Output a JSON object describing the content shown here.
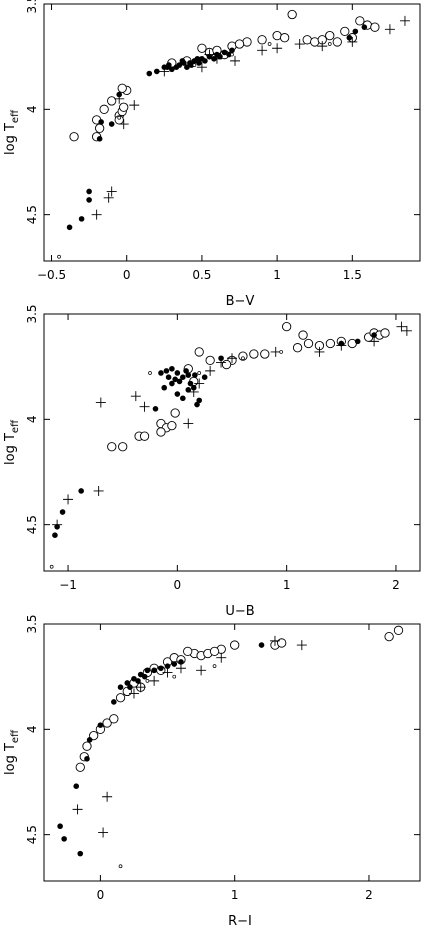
{
  "chart_data": [
    {
      "type": "scatter",
      "xlabel": "B−V",
      "ylabel": "log T",
      "ylabel_subscript": "eff",
      "xlim": [
        -0.55,
        1.95
      ],
      "ylim": [
        3.5,
        4.72
      ],
      "y_inverted": true,
      "x_ticks": [
        -0.5,
        0,
        0.5,
        1,
        1.5
      ],
      "x_tick_labels": [
        "−0.5",
        "0",
        "0.5",
        "1",
        "1.5"
      ],
      "y_ticks": [
        3.5,
        4,
        4.5
      ],
      "y_tick_labels": [
        "3.5",
        "4",
        "4.5"
      ],
      "grid": false,
      "series": [
        {
          "marker": "open-circle",
          "points": [
            [
              -0.35,
              4.13
            ],
            [
              -0.2,
              4.13
            ],
            [
              -0.2,
              4.05
            ],
            [
              -0.18,
              4.09
            ],
            [
              -0.15,
              4.0
            ],
            [
              -0.1,
              3.96
            ],
            [
              -0.05,
              4.03
            ],
            [
              -0.05,
              4.05
            ],
            [
              -0.03,
              4.01
            ],
            [
              -0.02,
              3.99
            ],
            [
              0.0,
              3.91
            ],
            [
              -0.03,
              3.9
            ],
            [
              0.3,
              3.78
            ],
            [
              0.4,
              3.77
            ],
            [
              0.5,
              3.71
            ],
            [
              0.55,
              3.73
            ],
            [
              0.6,
              3.72
            ],
            [
              0.7,
              3.7
            ],
            [
              0.8,
              3.68
            ],
            [
              0.9,
              3.67
            ],
            [
              1.0,
              3.65
            ],
            [
              1.05,
              3.66
            ],
            [
              1.2,
              3.67
            ],
            [
              1.25,
              3.68
            ],
            [
              1.3,
              3.67
            ],
            [
              1.4,
              3.68
            ],
            [
              1.5,
              3.66
            ],
            [
              1.55,
              3.58
            ],
            [
              1.6,
              3.6
            ],
            [
              1.65,
              3.61
            ],
            [
              1.1,
              3.55
            ],
            [
              1.45,
              3.63
            ],
            [
              1.35,
              3.65
            ],
            [
              0.75,
              3.69
            ],
            [
              0.65,
              3.74
            ]
          ]
        },
        {
          "marker": "filled-circle",
          "points": [
            [
              -0.38,
              4.56
            ],
            [
              -0.3,
              4.52
            ],
            [
              -0.25,
              4.43
            ],
            [
              -0.25,
              4.39
            ],
            [
              -0.18,
              4.14
            ],
            [
              -0.17,
              4.06
            ],
            [
              -0.1,
              4.07
            ],
            [
              -0.05,
              3.93
            ],
            [
              0.15,
              3.83
            ],
            [
              0.2,
              3.82
            ],
            [
              0.25,
              3.8
            ],
            [
              0.3,
              3.81
            ],
            [
              0.35,
              3.79
            ],
            [
              0.38,
              3.78
            ],
            [
              0.4,
              3.8
            ],
            [
              0.42,
              3.78
            ],
            [
              0.45,
              3.77
            ],
            [
              0.48,
              3.78
            ],
            [
              0.5,
              3.76
            ],
            [
              0.52,
              3.77
            ],
            [
              0.55,
              3.75
            ],
            [
              0.58,
              3.76
            ],
            [
              0.6,
              3.74
            ],
            [
              0.62,
              3.75
            ],
            [
              0.65,
              3.73
            ],
            [
              0.68,
              3.74
            ],
            [
              0.28,
              3.79
            ],
            [
              0.33,
              3.8
            ],
            [
              0.43,
              3.79
            ],
            [
              0.47,
              3.76
            ],
            [
              0.7,
              3.72
            ],
            [
              1.48,
              3.66
            ],
            [
              1.52,
              3.63
            ],
            [
              1.58,
              3.61
            ],
            [
              0.27,
              3.8
            ],
            [
              0.37,
              3.77
            ]
          ]
        },
        {
          "marker": "plus",
          "points": [
            [
              -0.2,
              4.5
            ],
            [
              -0.12,
              4.42
            ],
            [
              -0.1,
              4.39
            ],
            [
              -0.05,
              3.95
            ],
            [
              -0.02,
              4.07
            ],
            [
              0.05,
              3.98
            ],
            [
              0.25,
              3.82
            ],
            [
              0.5,
              3.8
            ],
            [
              0.72,
              3.77
            ],
            [
              0.9,
              3.72
            ],
            [
              1.0,
              3.71
            ],
            [
              1.3,
              3.7
            ],
            [
              1.5,
              3.68
            ],
            [
              1.75,
              3.62
            ],
            [
              1.85,
              3.58
            ],
            [
              0.6,
              3.76
            ],
            [
              1.15,
              3.69
            ],
            [
              0.55,
              3.74
            ]
          ]
        },
        {
          "marker": "small-circle",
          "points": [
            [
              -0.45,
              4.7
            ],
            [
              -0.05,
              4.04
            ],
            [
              0.45,
              3.79
            ],
            [
              0.7,
              3.74
            ],
            [
              0.95,
              3.69
            ],
            [
              1.35,
              3.69
            ]
          ]
        }
      ]
    },
    {
      "type": "scatter",
      "xlabel": "U−B",
      "ylabel": "log T",
      "ylabel_subscript": "eff",
      "xlim": [
        -1.22,
        2.22
      ],
      "ylim": [
        3.5,
        4.72
      ],
      "y_inverted": true,
      "x_ticks": [
        -1,
        0,
        1,
        2
      ],
      "x_tick_labels": [
        "−1",
        "0",
        "1",
        "2"
      ],
      "y_ticks": [
        3.5,
        4,
        4.5
      ],
      "y_tick_labels": [
        "3.5",
        "4",
        "4.5"
      ],
      "grid": false,
      "series": [
        {
          "marker": "open-circle",
          "points": [
            [
              -0.6,
              4.13
            ],
            [
              -0.5,
              4.13
            ],
            [
              -0.35,
              4.08
            ],
            [
              -0.3,
              4.08
            ],
            [
              -0.15,
              4.02
            ],
            [
              -0.1,
              4.04
            ],
            [
              -0.05,
              4.03
            ],
            [
              -0.15,
              4.06
            ],
            [
              -0.02,
              3.97
            ],
            [
              0.2,
              3.68
            ],
            [
              0.3,
              3.72
            ],
            [
              0.5,
              3.72
            ],
            [
              0.6,
              3.7
            ],
            [
              0.7,
              3.69
            ],
            [
              0.8,
              3.69
            ],
            [
              1.0,
              3.56
            ],
            [
              1.1,
              3.66
            ],
            [
              1.15,
              3.6
            ],
            [
              1.2,
              3.64
            ],
            [
              1.4,
              3.64
            ],
            [
              1.5,
              3.63
            ],
            [
              1.6,
              3.64
            ],
            [
              1.75,
              3.61
            ],
            [
              1.8,
              3.59
            ],
            [
              1.85,
              3.6
            ],
            [
              1.9,
              3.59
            ],
            [
              0.1,
              3.76
            ],
            [
              0.45,
              3.74
            ],
            [
              0.15,
              3.82
            ],
            [
              1.3,
              3.65
            ]
          ]
        },
        {
          "marker": "filled-circle",
          "points": [
            [
              -1.12,
              4.55
            ],
            [
              -1.1,
              4.51
            ],
            [
              -1.05,
              4.44
            ],
            [
              -0.88,
              4.34
            ],
            [
              -0.15,
              3.78
            ],
            [
              -0.1,
              3.77
            ],
            [
              -0.05,
              3.76
            ],
            [
              0.0,
              3.78
            ],
            [
              0.05,
              3.8
            ],
            [
              0.1,
              3.79
            ],
            [
              -0.08,
              3.8
            ],
            [
              -0.02,
              3.81
            ],
            [
              0.02,
              3.82
            ],
            [
              0.08,
              3.77
            ],
            [
              0.12,
              3.83
            ],
            [
              0.15,
              3.85
            ],
            [
              0.2,
              3.91
            ],
            [
              0.18,
              3.93
            ],
            [
              -0.2,
              3.95
            ],
            [
              0.05,
              3.9
            ],
            [
              -0.12,
              3.85
            ],
            [
              0.0,
              3.88
            ],
            [
              0.1,
              3.86
            ],
            [
              0.25,
              3.8
            ],
            [
              0.4,
              3.71
            ],
            [
              1.5,
              3.64
            ],
            [
              1.65,
              3.63
            ],
            [
              1.8,
              3.6
            ],
            [
              -0.05,
              3.83
            ],
            [
              0.16,
              3.79
            ]
          ]
        },
        {
          "marker": "plus",
          "points": [
            [
              -1.1,
              4.5
            ],
            [
              -1.0,
              4.38
            ],
            [
              -0.72,
              4.34
            ],
            [
              -0.7,
              3.92
            ],
            [
              -0.38,
              3.89
            ],
            [
              -0.3,
              3.94
            ],
            [
              0.1,
              4.02
            ],
            [
              0.2,
              3.83
            ],
            [
              0.3,
              3.77
            ],
            [
              0.4,
              3.73
            ],
            [
              0.5,
              3.71
            ],
            [
              0.9,
              3.68
            ],
            [
              1.3,
              3.68
            ],
            [
              1.5,
              3.65
            ],
            [
              1.8,
              3.63
            ],
            [
              2.05,
              3.56
            ],
            [
              2.1,
              3.58
            ],
            [
              0.15,
              3.87
            ]
          ]
        },
        {
          "marker": "small-circle",
          "points": [
            [
              -1.15,
              4.7
            ],
            [
              -0.25,
              3.78
            ],
            [
              0.2,
              3.78
            ],
            [
              0.6,
              3.71
            ],
            [
              0.95,
              3.68
            ]
          ]
        }
      ]
    },
    {
      "type": "scatter",
      "xlabel": "R−I",
      "ylabel": "log T",
      "ylabel_subscript": "eff",
      "xlim": [
        -0.42,
        2.38
      ],
      "ylim": [
        3.5,
        4.72
      ],
      "y_inverted": true,
      "x_ticks": [
        0,
        1,
        2
      ],
      "x_tick_labels": [
        "0",
        "1",
        "2"
      ],
      "y_ticks": [
        3.5,
        4,
        4.5
      ],
      "y_tick_labels": [
        "3.5",
        "4",
        "4.5"
      ],
      "grid": false,
      "series": [
        {
          "marker": "open-circle",
          "points": [
            [
              -0.15,
              4.18
            ],
            [
              -0.12,
              4.13
            ],
            [
              -0.1,
              4.08
            ],
            [
              -0.05,
              4.03
            ],
            [
              0.0,
              4.0
            ],
            [
              0.05,
              3.97
            ],
            [
              0.1,
              3.95
            ],
            [
              0.2,
              3.82
            ],
            [
              0.3,
              3.8
            ],
            [
              0.35,
              3.73
            ],
            [
              0.4,
              3.71
            ],
            [
              0.45,
              3.72
            ],
            [
              0.5,
              3.68
            ],
            [
              0.55,
              3.66
            ],
            [
              0.6,
              3.67
            ],
            [
              0.7,
              3.64
            ],
            [
              0.75,
              3.65
            ],
            [
              0.8,
              3.64
            ],
            [
              0.9,
              3.62
            ],
            [
              1.0,
              3.6
            ],
            [
              1.3,
              3.6
            ],
            [
              1.35,
              3.59
            ],
            [
              2.15,
              3.56
            ],
            [
              2.22,
              3.53
            ],
            [
              0.25,
              3.78
            ],
            [
              0.65,
              3.63
            ],
            [
              0.85,
              3.63
            ],
            [
              0.15,
              3.85
            ]
          ]
        },
        {
          "marker": "filled-circle",
          "points": [
            [
              -0.3,
              4.46
            ],
            [
              -0.27,
              4.52
            ],
            [
              -0.15,
              4.59
            ],
            [
              -0.18,
              4.27
            ],
            [
              -0.1,
              4.14
            ],
            [
              -0.08,
              4.05
            ],
            [
              0.0,
              3.98
            ],
            [
              0.1,
              3.87
            ],
            [
              0.15,
              3.8
            ],
            [
              0.2,
              3.78
            ],
            [
              0.25,
              3.76
            ],
            [
              0.3,
              3.74
            ],
            [
              0.35,
              3.72
            ],
            [
              0.4,
              3.72
            ],
            [
              0.5,
              3.7
            ],
            [
              0.6,
              3.68
            ],
            [
              1.2,
              3.6
            ],
            [
              0.22,
              3.8
            ],
            [
              0.28,
              3.77
            ],
            [
              0.33,
              3.75
            ],
            [
              0.45,
              3.71
            ],
            [
              0.55,
              3.69
            ]
          ]
        },
        {
          "marker": "plus",
          "points": [
            [
              -0.17,
              4.38
            ],
            [
              0.02,
              4.49
            ],
            [
              0.05,
              4.32
            ],
            [
              0.25,
              3.83
            ],
            [
              0.3,
              3.8
            ],
            [
              0.4,
              3.77
            ],
            [
              0.5,
              3.73
            ],
            [
              0.6,
              3.71
            ],
            [
              0.75,
              3.72
            ],
            [
              0.9,
              3.66
            ],
            [
              1.3,
              3.58
            ],
            [
              1.5,
              3.6
            ]
          ]
        },
        {
          "marker": "small-circle",
          "points": [
            [
              0.15,
              4.65
            ],
            [
              0.35,
              3.77
            ],
            [
              0.55,
              3.75
            ],
            [
              0.85,
              3.7
            ]
          ]
        }
      ]
    }
  ]
}
